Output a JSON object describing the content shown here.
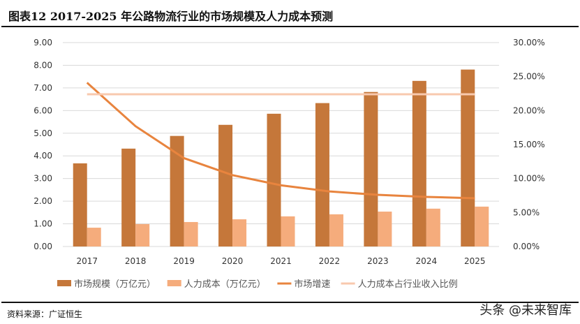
{
  "title": "图表12 2017-2025 年公路物流行业的市场规模及人力成本预测",
  "source": "资料来源：广证恒生",
  "watermark": "头条 @未来智库",
  "chart_data": {
    "type": "bar+line",
    "categories": [
      "2017",
      "2018",
      "2019",
      "2020",
      "2021",
      "2022",
      "2023",
      "2024",
      "2025"
    ],
    "y_left": {
      "range": [
        0,
        9
      ],
      "ticks": [
        "0.00",
        "1.00",
        "2.00",
        "3.00",
        "4.00",
        "5.00",
        "6.00",
        "7.00",
        "8.00",
        "9.00"
      ]
    },
    "y_right": {
      "range": [
        0,
        30
      ],
      "ticks": [
        "0.00%",
        "5.00%",
        "10.00%",
        "15.00%",
        "20.00%",
        "25.00%",
        "30.00%"
      ]
    },
    "grid": true,
    "legend_position": "bottom",
    "series": [
      {
        "name": "市场规模（万亿元）",
        "type": "bar",
        "axis": "left",
        "color": "#C5773A",
        "values": [
          3.67,
          4.32,
          4.88,
          5.37,
          5.86,
          6.33,
          6.82,
          7.31,
          7.81
        ]
      },
      {
        "name": "人力成本（万亿元）",
        "type": "bar",
        "axis": "left",
        "color": "#F5AC7C",
        "values": [
          0.83,
          0.99,
          1.08,
          1.2,
          1.33,
          1.42,
          1.54,
          1.67,
          1.76
        ]
      },
      {
        "name": "市场增速",
        "type": "line",
        "axis": "right",
        "color": "#E8843E",
        "values": [
          24.1,
          17.7,
          13.0,
          10.5,
          9.0,
          8.1,
          7.6,
          7.3,
          7.1
        ]
      },
      {
        "name": "人力成本占行业收入比例",
        "type": "line",
        "axis": "right",
        "color": "#F8C9AE",
        "values": [
          22.4,
          22.4,
          22.4,
          22.4,
          22.4,
          22.4,
          22.4,
          22.4,
          22.4
        ]
      }
    ]
  }
}
